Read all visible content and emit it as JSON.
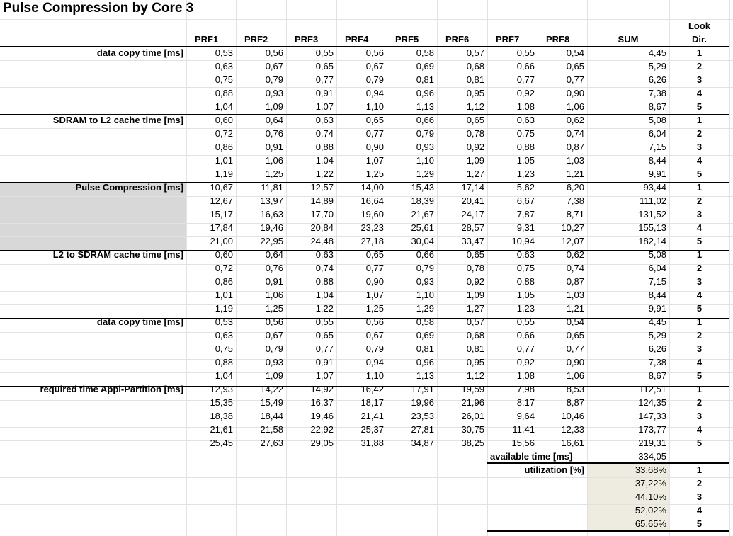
{
  "title": "Pulse Compression by Core 3",
  "headers": {
    "columns": [
      "PRF1",
      "PRF2",
      "PRF3",
      "PRF4",
      "PRF5",
      "PRF6",
      "PRF7",
      "PRF8"
    ],
    "sum": "SUM",
    "look_dir_line1": "Look",
    "look_dir_line2": "Dir."
  },
  "sections": [
    {
      "label": "data copy time [ms]",
      "rows": [
        {
          "values": [
            "0,53",
            "0,56",
            "0,55",
            "0,56",
            "0,58",
            "0,57",
            "0,55",
            "0,54"
          ],
          "sum": "4,45",
          "dir": "1"
        },
        {
          "values": [
            "0,63",
            "0,67",
            "0,65",
            "0,67",
            "0,69",
            "0,68",
            "0,66",
            "0,65"
          ],
          "sum": "5,29",
          "dir": "2"
        },
        {
          "values": [
            "0,75",
            "0,79",
            "0,77",
            "0,79",
            "0,81",
            "0,81",
            "0,77",
            "0,77"
          ],
          "sum": "6,26",
          "dir": "3"
        },
        {
          "values": [
            "0,88",
            "0,93",
            "0,91",
            "0,94",
            "0,96",
            "0,95",
            "0,92",
            "0,90"
          ],
          "sum": "7,38",
          "dir": "4"
        },
        {
          "values": [
            "1,04",
            "1,09",
            "1,07",
            "1,10",
            "1,13",
            "1,12",
            "1,08",
            "1,06"
          ],
          "sum": "8,67",
          "dir": "5"
        }
      ]
    },
    {
      "label": "SDRAM to L2 cache time [ms]",
      "rows": [
        {
          "values": [
            "0,60",
            "0,64",
            "0,63",
            "0,65",
            "0,66",
            "0,65",
            "0,63",
            "0,62"
          ],
          "sum": "5,08",
          "dir": "1"
        },
        {
          "values": [
            "0,72",
            "0,76",
            "0,74",
            "0,77",
            "0,79",
            "0,78",
            "0,75",
            "0,74"
          ],
          "sum": "6,04",
          "dir": "2"
        },
        {
          "values": [
            "0,86",
            "0,91",
            "0,88",
            "0,90",
            "0,93",
            "0,92",
            "0,88",
            "0,87"
          ],
          "sum": "7,15",
          "dir": "3"
        },
        {
          "values": [
            "1,01",
            "1,06",
            "1,04",
            "1,07",
            "1,10",
            "1,09",
            "1,05",
            "1,03"
          ],
          "sum": "8,44",
          "dir": "4"
        },
        {
          "values": [
            "1,19",
            "1,25",
            "1,22",
            "1,25",
            "1,29",
            "1,27",
            "1,23",
            "1,21"
          ],
          "sum": "9,91",
          "dir": "5"
        }
      ]
    },
    {
      "label": "Pulse Compression [ms]",
      "rows": [
        {
          "values": [
            "10,67",
            "11,81",
            "12,57",
            "14,00",
            "15,43",
            "17,14",
            "5,62",
            "6,20"
          ],
          "sum": "93,44",
          "dir": "1"
        },
        {
          "values": [
            "12,67",
            "13,97",
            "14,89",
            "16,64",
            "18,39",
            "20,41",
            "6,67",
            "7,38"
          ],
          "sum": "111,02",
          "dir": "2"
        },
        {
          "values": [
            "15,17",
            "16,63",
            "17,70",
            "19,60",
            "21,67",
            "24,17",
            "7,87",
            "8,71"
          ],
          "sum": "131,52",
          "dir": "3"
        },
        {
          "values": [
            "17,84",
            "19,46",
            "20,84",
            "23,23",
            "25,61",
            "28,57",
            "9,31",
            "10,27"
          ],
          "sum": "155,13",
          "dir": "4"
        },
        {
          "values": [
            "21,00",
            "22,95",
            "24,48",
            "27,18",
            "30,04",
            "33,47",
            "10,94",
            "12,07"
          ],
          "sum": "182,14",
          "dir": "5"
        }
      ]
    },
    {
      "label": "L2 to SDRAM cache time [ms]",
      "rows": [
        {
          "values": [
            "0,60",
            "0,64",
            "0,63",
            "0,65",
            "0,66",
            "0,65",
            "0,63",
            "0,62"
          ],
          "sum": "5,08",
          "dir": "1"
        },
        {
          "values": [
            "0,72",
            "0,76",
            "0,74",
            "0,77",
            "0,79",
            "0,78",
            "0,75",
            "0,74"
          ],
          "sum": "6,04",
          "dir": "2"
        },
        {
          "values": [
            "0,86",
            "0,91",
            "0,88",
            "0,90",
            "0,93",
            "0,92",
            "0,88",
            "0,87"
          ],
          "sum": "7,15",
          "dir": "3"
        },
        {
          "values": [
            "1,01",
            "1,06",
            "1,04",
            "1,07",
            "1,10",
            "1,09",
            "1,05",
            "1,03"
          ],
          "sum": "8,44",
          "dir": "4"
        },
        {
          "values": [
            "1,19",
            "1,25",
            "1,22",
            "1,25",
            "1,29",
            "1,27",
            "1,23",
            "1,21"
          ],
          "sum": "9,91",
          "dir": "5"
        }
      ]
    },
    {
      "label": "data copy time [ms]",
      "rows": [
        {
          "values": [
            "0,53",
            "0,56",
            "0,55",
            "0,56",
            "0,58",
            "0,57",
            "0,55",
            "0,54"
          ],
          "sum": "4,45",
          "dir": "1"
        },
        {
          "values": [
            "0,63",
            "0,67",
            "0,65",
            "0,67",
            "0,69",
            "0,68",
            "0,66",
            "0,65"
          ],
          "sum": "5,29",
          "dir": "2"
        },
        {
          "values": [
            "0,75",
            "0,79",
            "0,77",
            "0,79",
            "0,81",
            "0,81",
            "0,77",
            "0,77"
          ],
          "sum": "6,26",
          "dir": "3"
        },
        {
          "values": [
            "0,88",
            "0,93",
            "0,91",
            "0,94",
            "0,96",
            "0,95",
            "0,92",
            "0,90"
          ],
          "sum": "7,38",
          "dir": "4"
        },
        {
          "values": [
            "1,04",
            "1,09",
            "1,07",
            "1,10",
            "1,13",
            "1,12",
            "1,08",
            "1,06"
          ],
          "sum": "8,67",
          "dir": "5"
        }
      ]
    },
    {
      "label": "required time Appl-Partition [ms]",
      "rows": [
        {
          "values": [
            "12,93",
            "14,22",
            "14,92",
            "16,42",
            "17,91",
            "19,59",
            "7,98",
            "8,53"
          ],
          "sum": "112,51",
          "dir": "1"
        },
        {
          "values": [
            "15,35",
            "15,49",
            "16,37",
            "18,17",
            "19,96",
            "21,96",
            "8,17",
            "8,87"
          ],
          "sum": "124,35",
          "dir": "2"
        },
        {
          "values": [
            "18,38",
            "18,44",
            "19,46",
            "21,41",
            "23,53",
            "26,01",
            "9,64",
            "10,46"
          ],
          "sum": "147,33",
          "dir": "3"
        },
        {
          "values": [
            "21,61",
            "21,58",
            "22,92",
            "25,37",
            "27,81",
            "30,75",
            "11,41",
            "12,33"
          ],
          "sum": "173,77",
          "dir": "4"
        },
        {
          "values": [
            "25,45",
            "27,63",
            "29,05",
            "31,88",
            "34,87",
            "38,25",
            "15,56",
            "16,61"
          ],
          "sum": "219,31",
          "dir": "5"
        }
      ]
    }
  ],
  "available_time": {
    "label": "available time [ms]",
    "value": "334,05"
  },
  "utilization": {
    "label": "utilization [%]",
    "rows": [
      {
        "value": "33,68%",
        "dir": "1"
      },
      {
        "value": "37,22%",
        "dir": "2"
      },
      {
        "value": "44,10%",
        "dir": "3"
      },
      {
        "value": "52,02%",
        "dir": "4"
      },
      {
        "value": "65,65%",
        "dir": "5"
      }
    ]
  }
}
